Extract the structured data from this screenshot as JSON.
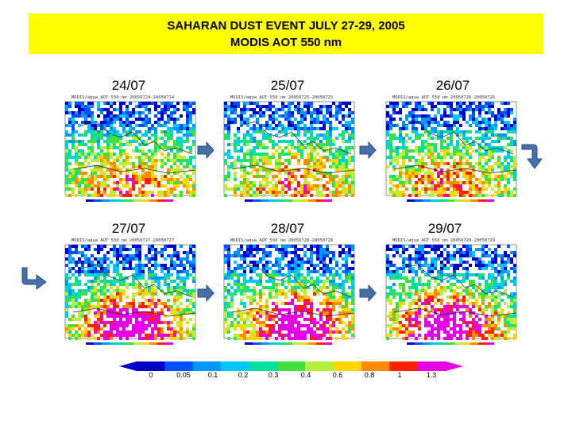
{
  "title": {
    "line1": "SAHARAN DUST EVENT JULY 27-29, 2005",
    "line2": "MODIS AOT 550 nm"
  },
  "panels": [
    {
      "date": "24/07",
      "caption": "MODIS/aqua AOT 550 nm 20050724-20050724"
    },
    {
      "date": "25/07",
      "caption": "MODIS/aqua AOT 550 nm 20050725-20050725"
    },
    {
      "date": "26/07",
      "caption": "MODIS/aqua AOT 550 nm 20050726-20050726"
    },
    {
      "date": "27/07",
      "caption": "MODIS/aqua AOT 550 nm 20050727-20050727"
    },
    {
      "date": "28/07",
      "caption": "MODIS/aqua AOT 550 nm 20050728-20050728"
    },
    {
      "date": "29/07",
      "caption": "MODIS/aqua AOT 550 nm 20050729-20050729"
    }
  ],
  "colorscale": {
    "labels": [
      "0",
      "0.05",
      "0.1",
      "0.2",
      "0.3",
      "0.4",
      "0.6",
      "0.8",
      "1",
      "1.3"
    ],
    "colors": [
      "#0000c8",
      "#0050ff",
      "#0096ff",
      "#00c8ff",
      "#00e0a0",
      "#40e040",
      "#b4f040",
      "#ffd700",
      "#ff8c00",
      "#ff2000",
      "#e600e6"
    ]
  },
  "colors": {
    "title_background": "#ffff00",
    "arrow_fill": "#1f4e9c"
  },
  "icons": {
    "arrow_right": "arrow-right-icon",
    "arrow_turn_down": "arrow-turn-down-icon",
    "arrow_turn_right": "arrow-turn-right-icon"
  }
}
